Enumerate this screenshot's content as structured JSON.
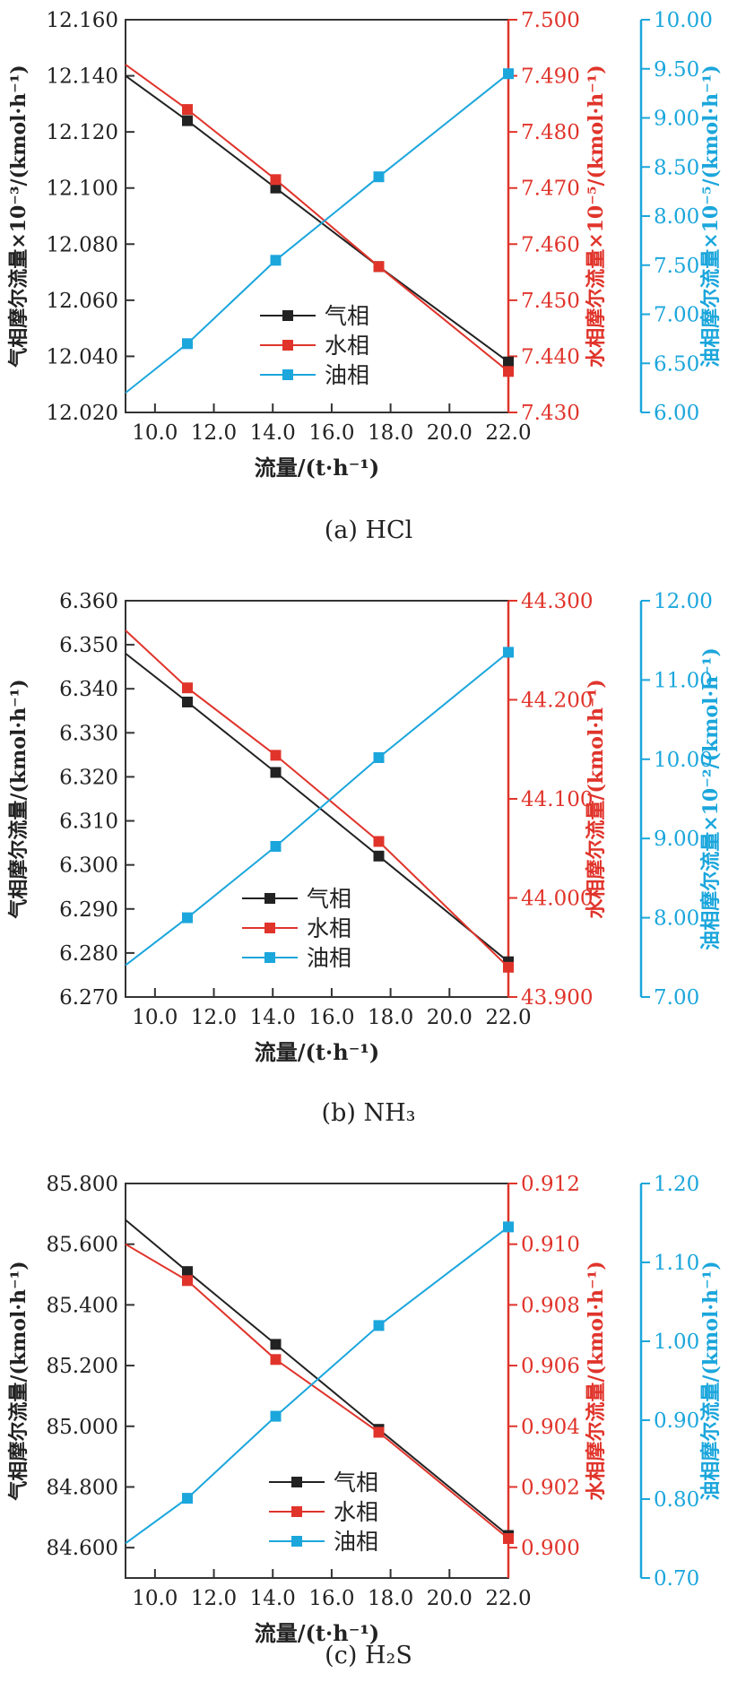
{
  "chart_data": [
    {
      "type": "line",
      "caption": "(a) HCl",
      "xlabel": "流量/(t·h⁻¹)",
      "xlim": [
        9.0,
        22.0
      ],
      "xticks": [
        10.0,
        12.0,
        14.0,
        16.0,
        18.0,
        20.0,
        22.0
      ],
      "x": [
        9.0,
        11.1,
        14.1,
        17.6,
        22.0
      ],
      "axes": {
        "left": {
          "label": "气相摩尔流量×10⁻³/(kmol·h⁻¹)",
          "ylim": [
            12.02,
            12.16
          ],
          "ticks": [
            12.02,
            12.04,
            12.06,
            12.08,
            12.1,
            12.12,
            12.14,
            12.16
          ],
          "decimals": 3,
          "color": "#222222"
        },
        "right": {
          "label": "水相摩尔流量×10⁻⁵/(kmol·h⁻¹)",
          "ylim": [
            7.43,
            7.5
          ],
          "ticks": [
            7.43,
            7.44,
            7.45,
            7.46,
            7.47,
            7.48,
            7.49,
            7.5
          ],
          "decimals": 3,
          "color": "#e0342b"
        },
        "far": {
          "label": "油相摩尔流量×10⁻⁵/(kmol·h⁻¹)",
          "ylim": [
            6.0,
            10.0
          ],
          "ticks": [
            6.0,
            6.5,
            7.0,
            7.5,
            8.0,
            8.5,
            9.0,
            9.5,
            10.0
          ],
          "decimals": 2,
          "color": "#1ba6dc"
        }
      },
      "series": [
        {
          "name": "气相",
          "axis": "left",
          "color": "#222222",
          "values": [
            12.14,
            12.124,
            12.1,
            12.072,
            12.038
          ]
        },
        {
          "name": "水相",
          "axis": "right",
          "color": "#e0342b",
          "values": [
            7.492,
            7.484,
            7.4715,
            7.456,
            7.4373
          ]
        },
        {
          "name": "油相",
          "axis": "far",
          "color": "#1ba6dc",
          "values": [
            6.2,
            6.7,
            7.55,
            8.4,
            9.45
          ]
        }
      ],
      "legend_position": "lower-center"
    },
    {
      "type": "line",
      "caption": "(b) NH₃",
      "xlabel": "流量/(t·h⁻¹)",
      "xlim": [
        9.0,
        22.0
      ],
      "xticks": [
        10.0,
        12.0,
        14.0,
        16.0,
        18.0,
        20.0,
        22.0
      ],
      "x": [
        9.0,
        11.1,
        14.1,
        17.6,
        22.0
      ],
      "axes": {
        "left": {
          "label": "气相摩尔流量/(kmol·h⁻¹)",
          "ylim": [
            6.27,
            6.36
          ],
          "ticks": [
            6.27,
            6.28,
            6.29,
            6.3,
            6.31,
            6.32,
            6.33,
            6.34,
            6.35,
            6.36
          ],
          "decimals": 3,
          "color": "#222222"
        },
        "right": {
          "label": "水相摩尔流量/(kmol·h⁻¹)",
          "ylim": [
            43.9,
            44.3
          ],
          "ticks": [
            43.9,
            44.0,
            44.1,
            44.2,
            44.3
          ],
          "decimals": 3,
          "color": "#e0342b"
        },
        "far": {
          "label": "油相摩尔流量×10⁻²/(kmol·h⁻¹)",
          "ylim": [
            7.0,
            12.0
          ],
          "ticks": [
            7.0,
            8.0,
            9.0,
            10.0,
            11.0,
            12.0
          ],
          "decimals": 2,
          "color": "#1ba6dc"
        }
      },
      "series": [
        {
          "name": "气相",
          "axis": "left",
          "color": "#222222",
          "values": [
            6.348,
            6.337,
            6.321,
            6.302,
            6.278
          ]
        },
        {
          "name": "水相",
          "axis": "right",
          "color": "#e0342b",
          "values": [
            44.27,
            44.212,
            44.144,
            44.057,
            43.93
          ]
        },
        {
          "name": "油相",
          "axis": "far",
          "color": "#1ba6dc",
          "values": [
            7.4,
            8.0,
            8.9,
            10.02,
            11.35
          ]
        }
      ],
      "legend_position": "lower-center"
    },
    {
      "type": "line",
      "caption": "(c) H₂S",
      "xlabel": "流量/(t·h⁻¹)",
      "xlim": [
        9.0,
        22.0
      ],
      "xticks": [
        10.0,
        12.0,
        14.0,
        16.0,
        18.0,
        20.0,
        22.0
      ],
      "x": [
        9.0,
        11.1,
        14.1,
        17.6,
        22.0
      ],
      "axes": {
        "left": {
          "label": "气相摩尔流量/(kmol·h⁻¹)",
          "ylim": [
            84.5,
            85.8
          ],
          "ticks": [
            84.6,
            84.8,
            85.0,
            85.2,
            85.4,
            85.6,
            85.8
          ],
          "decimals": 3,
          "color": "#222222"
        },
        "right": {
          "label": "水相摩尔流量/(kmol·h⁻¹)",
          "ylim": [
            0.899,
            0.912
          ],
          "ticks": [
            0.9,
            0.902,
            0.904,
            0.906,
            0.908,
            0.91,
            0.912
          ],
          "decimals": 3,
          "color": "#e0342b"
        },
        "far": {
          "label": "油相摩尔流量/(kmol·h⁻¹)",
          "ylim": [
            0.7,
            1.2
          ],
          "ticks": [
            0.7,
            0.8,
            0.9,
            1.0,
            1.1,
            1.2
          ],
          "decimals": 2,
          "color": "#1ba6dc"
        }
      },
      "series": [
        {
          "name": "气相",
          "axis": "left",
          "color": "#222222",
          "values": [
            85.68,
            85.51,
            85.27,
            84.99,
            84.64
          ]
        },
        {
          "name": "水相",
          "axis": "right",
          "color": "#e0342b",
          "values": [
            0.91,
            0.9088,
            0.9062,
            0.9038,
            0.9003
          ]
        },
        {
          "name": "油相",
          "axis": "far",
          "color": "#1ba6dc",
          "values": [
            0.744,
            0.801,
            0.905,
            1.02,
            1.145
          ]
        }
      ],
      "legend_position": "lower-center"
    }
  ]
}
